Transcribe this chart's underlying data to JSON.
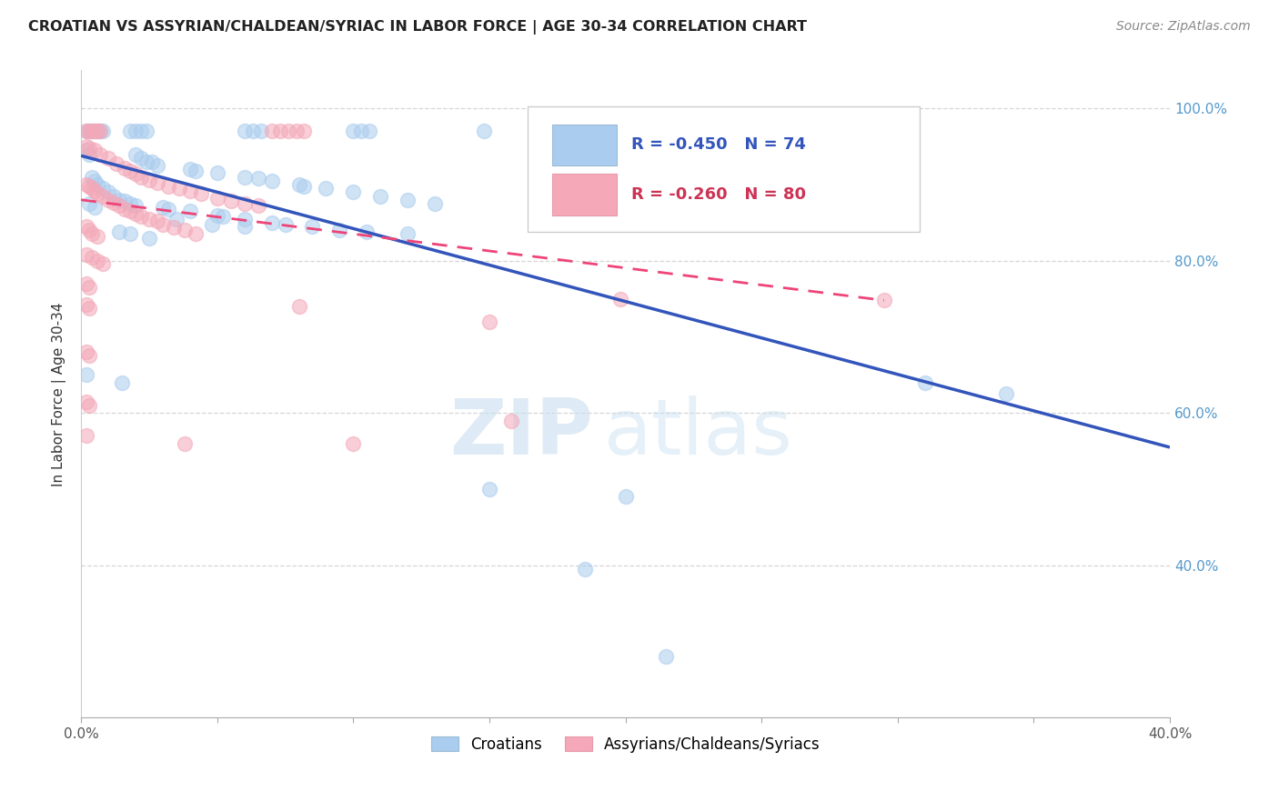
{
  "title": "CROATIAN VS ASSYRIAN/CHALDEAN/SYRIAC IN LABOR FORCE | AGE 30-34 CORRELATION CHART",
  "source": "Source: ZipAtlas.com",
  "ylabel": "In Labor Force | Age 30-34",
  "xlim": [
    0.0,
    0.4
  ],
  "ylim": [
    0.2,
    1.05
  ],
  "grid_color": "#cccccc",
  "background_color": "#ffffff",
  "blue_color": "#aaccee",
  "pink_color": "#f4a8b8",
  "blue_line_color": "#3355bb",
  "pink_line_color": "#ee4477",
  "r_blue": -0.45,
  "n_blue": 74,
  "r_pink": -0.26,
  "n_pink": 80,
  "watermark_zip": "ZIP",
  "watermark_atlas": "atlas",
  "blue_trendline": [
    [
      0.0,
      0.938
    ],
    [
      0.4,
      0.555
    ]
  ],
  "pink_trendline": [
    [
      0.0,
      0.88
    ],
    [
      0.295,
      0.748
    ]
  ],
  "blue_points": [
    [
      0.002,
      0.97
    ],
    [
      0.003,
      0.97
    ],
    [
      0.004,
      0.97
    ],
    [
      0.005,
      0.97
    ],
    [
      0.006,
      0.97
    ],
    [
      0.007,
      0.97
    ],
    [
      0.008,
      0.97
    ],
    [
      0.018,
      0.97
    ],
    [
      0.02,
      0.97
    ],
    [
      0.022,
      0.97
    ],
    [
      0.024,
      0.97
    ],
    [
      0.06,
      0.97
    ],
    [
      0.063,
      0.97
    ],
    [
      0.066,
      0.97
    ],
    [
      0.1,
      0.97
    ],
    [
      0.103,
      0.97
    ],
    [
      0.106,
      0.97
    ],
    [
      0.148,
      0.97
    ],
    [
      0.002,
      0.945
    ],
    [
      0.003,
      0.94
    ],
    [
      0.02,
      0.94
    ],
    [
      0.022,
      0.935
    ],
    [
      0.024,
      0.93
    ],
    [
      0.026,
      0.93
    ],
    [
      0.028,
      0.925
    ],
    [
      0.04,
      0.92
    ],
    [
      0.042,
      0.918
    ],
    [
      0.05,
      0.915
    ],
    [
      0.06,
      0.91
    ],
    [
      0.065,
      0.908
    ],
    [
      0.07,
      0.905
    ],
    [
      0.08,
      0.9
    ],
    [
      0.082,
      0.898
    ],
    [
      0.09,
      0.895
    ],
    [
      0.1,
      0.89
    ],
    [
      0.11,
      0.885
    ],
    [
      0.12,
      0.88
    ],
    [
      0.13,
      0.875
    ],
    [
      0.004,
      0.91
    ],
    [
      0.005,
      0.905
    ],
    [
      0.006,
      0.9
    ],
    [
      0.008,
      0.895
    ],
    [
      0.01,
      0.89
    ],
    [
      0.012,
      0.885
    ],
    [
      0.014,
      0.88
    ],
    [
      0.016,
      0.878
    ],
    [
      0.018,
      0.875
    ],
    [
      0.02,
      0.872
    ],
    [
      0.03,
      0.87
    ],
    [
      0.032,
      0.868
    ],
    [
      0.04,
      0.865
    ],
    [
      0.05,
      0.86
    ],
    [
      0.052,
      0.858
    ],
    [
      0.06,
      0.855
    ],
    [
      0.07,
      0.85
    ],
    [
      0.075,
      0.848
    ],
    [
      0.085,
      0.845
    ],
    [
      0.095,
      0.84
    ],
    [
      0.105,
      0.838
    ],
    [
      0.12,
      0.835
    ],
    [
      0.003,
      0.875
    ],
    [
      0.005,
      0.87
    ],
    [
      0.035,
      0.855
    ],
    [
      0.048,
      0.848
    ],
    [
      0.06,
      0.845
    ],
    [
      0.014,
      0.838
    ],
    [
      0.018,
      0.835
    ],
    [
      0.025,
      0.83
    ],
    [
      0.002,
      0.65
    ],
    [
      0.015,
      0.64
    ],
    [
      0.31,
      0.64
    ],
    [
      0.34,
      0.625
    ],
    [
      0.15,
      0.5
    ],
    [
      0.2,
      0.49
    ],
    [
      0.185,
      0.395
    ],
    [
      0.215,
      0.28
    ]
  ],
  "pink_points": [
    [
      0.002,
      0.97
    ],
    [
      0.003,
      0.97
    ],
    [
      0.004,
      0.97
    ],
    [
      0.005,
      0.97
    ],
    [
      0.006,
      0.97
    ],
    [
      0.007,
      0.97
    ],
    [
      0.07,
      0.97
    ],
    [
      0.073,
      0.97
    ],
    [
      0.076,
      0.97
    ],
    [
      0.079,
      0.97
    ],
    [
      0.082,
      0.97
    ],
    [
      0.002,
      0.95
    ],
    [
      0.003,
      0.948
    ],
    [
      0.005,
      0.945
    ],
    [
      0.007,
      0.94
    ],
    [
      0.01,
      0.935
    ],
    [
      0.013,
      0.928
    ],
    [
      0.016,
      0.922
    ],
    [
      0.018,
      0.918
    ],
    [
      0.02,
      0.914
    ],
    [
      0.022,
      0.91
    ],
    [
      0.025,
      0.906
    ],
    [
      0.028,
      0.902
    ],
    [
      0.032,
      0.898
    ],
    [
      0.036,
      0.895
    ],
    [
      0.04,
      0.892
    ],
    [
      0.044,
      0.888
    ],
    [
      0.05,
      0.882
    ],
    [
      0.055,
      0.878
    ],
    [
      0.06,
      0.875
    ],
    [
      0.065,
      0.872
    ],
    [
      0.002,
      0.9
    ],
    [
      0.003,
      0.898
    ],
    [
      0.004,
      0.895
    ],
    [
      0.005,
      0.892
    ],
    [
      0.006,
      0.888
    ],
    [
      0.008,
      0.884
    ],
    [
      0.01,
      0.88
    ],
    [
      0.012,
      0.876
    ],
    [
      0.014,
      0.872
    ],
    [
      0.016,
      0.868
    ],
    [
      0.018,
      0.865
    ],
    [
      0.02,
      0.862
    ],
    [
      0.022,
      0.858
    ],
    [
      0.025,
      0.855
    ],
    [
      0.028,
      0.852
    ],
    [
      0.03,
      0.848
    ],
    [
      0.034,
      0.844
    ],
    [
      0.038,
      0.84
    ],
    [
      0.042,
      0.836
    ],
    [
      0.002,
      0.845
    ],
    [
      0.003,
      0.84
    ],
    [
      0.004,
      0.836
    ],
    [
      0.006,
      0.832
    ],
    [
      0.002,
      0.808
    ],
    [
      0.004,
      0.804
    ],
    [
      0.006,
      0.8
    ],
    [
      0.008,
      0.796
    ],
    [
      0.002,
      0.77
    ],
    [
      0.003,
      0.765
    ],
    [
      0.002,
      0.742
    ],
    [
      0.003,
      0.738
    ],
    [
      0.002,
      0.68
    ],
    [
      0.003,
      0.675
    ],
    [
      0.002,
      0.615
    ],
    [
      0.003,
      0.61
    ],
    [
      0.002,
      0.57
    ],
    [
      0.038,
      0.56
    ],
    [
      0.08,
      0.74
    ],
    [
      0.1,
      0.56
    ],
    [
      0.15,
      0.72
    ],
    [
      0.198,
      0.75
    ],
    [
      0.295,
      0.748
    ],
    [
      0.158,
      0.59
    ]
  ]
}
